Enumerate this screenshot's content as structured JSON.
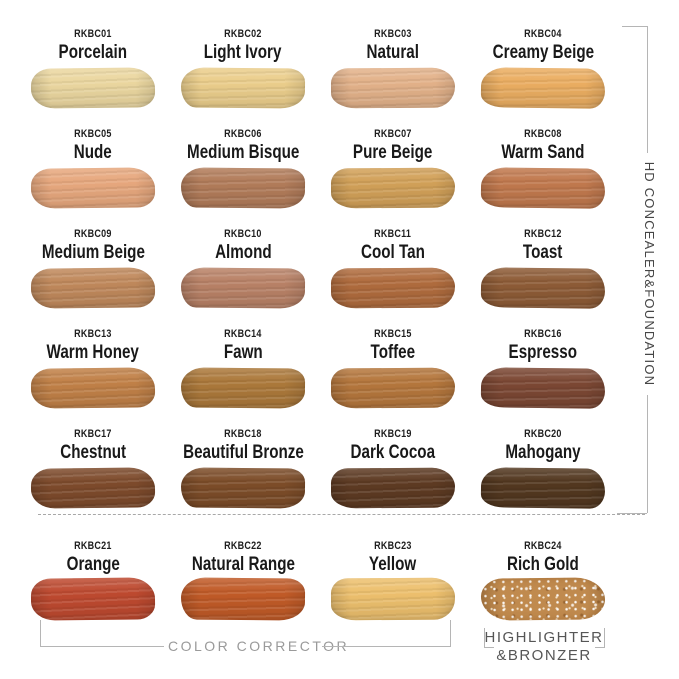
{
  "concealer_foundation": {
    "label": "HD CONCEALER&FOUNDATION",
    "swatches": [
      {
        "code": "RKBC01",
        "name": "Porcelain",
        "color": "#ebd7a0"
      },
      {
        "code": "RKBC02",
        "name": "Light Ivory",
        "color": "#ebce8c"
      },
      {
        "code": "RKBC03",
        "name": "Natural",
        "color": "#e3b28a"
      },
      {
        "code": "RKBC04",
        "name": "Creamy Beige",
        "color": "#ebae62"
      },
      {
        "code": "RKBC05",
        "name": "Nude",
        "color": "#e7a87e"
      },
      {
        "code": "RKBC06",
        "name": "Medium Bisque",
        "color": "#b27c5a"
      },
      {
        "code": "RKBC07",
        "name": "Pure Beige",
        "color": "#d2a159"
      },
      {
        "code": "RKBC08",
        "name": "Warm Sand",
        "color": "#c1794e"
      },
      {
        "code": "RKBC09",
        "name": "Medium Beige",
        "color": "#c0895c"
      },
      {
        "code": "RKBC10",
        "name": "Almond",
        "color": "#b98267"
      },
      {
        "code": "RKBC11",
        "name": "Cool Tan",
        "color": "#b06c3e"
      },
      {
        "code": "RKBC12",
        "name": "Toast",
        "color": "#8e5c37"
      },
      {
        "code": "RKBC13",
        "name": "Warm Honey",
        "color": "#c18148"
      },
      {
        "code": "RKBC14",
        "name": "Fawn",
        "color": "#ac793b"
      },
      {
        "code": "RKBC15",
        "name": "Toffee",
        "color": "#b5773d"
      },
      {
        "code": "RKBC16",
        "name": "Espresso",
        "color": "#7c4834"
      },
      {
        "code": "RKBC17",
        "name": "Chestnut",
        "color": "#7e4b2c"
      },
      {
        "code": "RKBC18",
        "name": "Beautiful Bronze",
        "color": "#7d4d29"
      },
      {
        "code": "RKBC19",
        "name": "Dark Cocoa",
        "color": "#5e3b23"
      },
      {
        "code": "RKBC20",
        "name": "Mahogany",
        "color": "#533820"
      }
    ]
  },
  "color_corrector": {
    "label": "COLOR CORRECTOR",
    "swatches": [
      {
        "code": "RKBC21",
        "name": "Orange",
        "color": "#be4a30"
      },
      {
        "code": "RKBC22",
        "name": "Natural Range",
        "color": "#c15b28"
      },
      {
        "code": "RKBC23",
        "name": "Yellow",
        "color": "#edc06e"
      }
    ]
  },
  "highlighter_bronzer": {
    "label_line1": "HIGHLIGHTER",
    "label_line2": "&BRONZER",
    "swatches": [
      {
        "code": "RKBC24",
        "name": "Rich Gold",
        "color": "#c08a4e",
        "glitter": true
      }
    ]
  }
}
